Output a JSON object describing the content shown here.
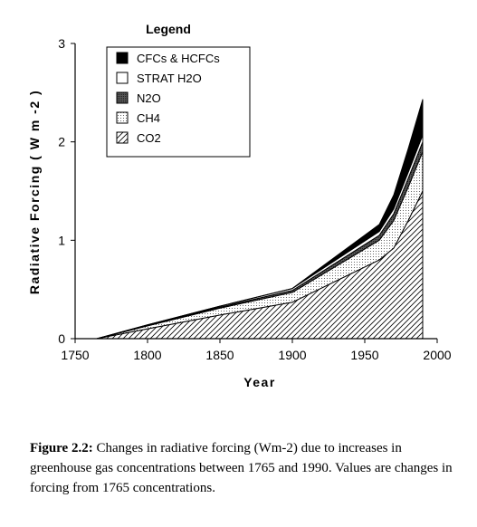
{
  "chart_data": {
    "type": "area",
    "stacked": true,
    "x": [
      1765,
      1800,
      1850,
      1900,
      1960,
      1970,
      1980,
      1990
    ],
    "series": [
      {
        "name": "CO2",
        "pattern": "diagonal-hatch",
        "values": [
          0.0,
          0.1,
          0.24,
          0.37,
          0.8,
          0.92,
          1.2,
          1.5
        ]
      },
      {
        "name": "CH4",
        "pattern": "dots",
        "values": [
          0.0,
          0.03,
          0.07,
          0.1,
          0.2,
          0.28,
          0.34,
          0.4
        ]
      },
      {
        "name": "N2O",
        "pattern": "dark-gray",
        "values": [
          0.0,
          0.005,
          0.01,
          0.02,
          0.05,
          0.07,
          0.09,
          0.1
        ]
      },
      {
        "name": "STRAT H2O",
        "pattern": "white",
        "values": [
          0.0,
          0.005,
          0.01,
          0.02,
          0.04,
          0.05,
          0.06,
          0.07
        ]
      },
      {
        "name": "CFCs & HCFCs",
        "pattern": "black",
        "values": [
          0.0,
          0.0,
          0.0,
          0.0,
          0.07,
          0.14,
          0.24,
          0.36
        ]
      }
    ],
    "xlim": [
      1750,
      2000
    ],
    "ylim": [
      0,
      3
    ],
    "xticks": [
      1750,
      1800,
      1850,
      1900,
      1950,
      2000
    ],
    "yticks": [
      0,
      1,
      2,
      3
    ],
    "xlabel": "Year",
    "ylabel": "Radiative  Forcing  ( W m -2 )",
    "legend_title": "Legend",
    "legend_placement": "top-left inside",
    "legend_order": [
      "CFCs & HCFCs",
      "STRAT H2O",
      "N2O",
      "CH4",
      "CO2"
    ],
    "grid": false
  },
  "caption": {
    "label": "Figure 2.2:",
    "text": " Changes in radiative forcing (Wm-2) due to increases in greenhouse gas concentrations between 1765 and 1990.  Values are changes in forcing from 1765 concentrations."
  }
}
